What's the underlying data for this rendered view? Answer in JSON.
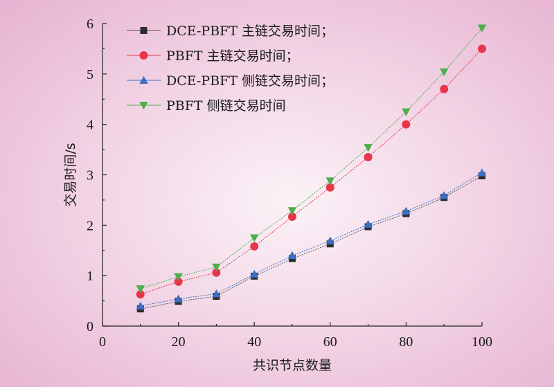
{
  "chart_data": {
    "type": "line",
    "title": "",
    "xlabel": "共识节点数量",
    "ylabel": "交易时间/s",
    "xlim": [
      0,
      100
    ],
    "ylim": [
      0,
      6
    ],
    "xticks": [
      0,
      20,
      40,
      60,
      80,
      100
    ],
    "yticks": [
      0,
      1,
      2,
      3,
      4,
      5,
      6
    ],
    "grid": false,
    "legend_position": "top-left",
    "x": [
      10,
      20,
      30,
      40,
      50,
      60,
      70,
      80,
      90,
      100
    ],
    "series": [
      {
        "name": "DCE-PBFT 主链交易时间；",
        "marker": "square",
        "color": "#2b2b2b",
        "line_color": "#555555",
        "values": [
          0.34,
          0.49,
          0.59,
          0.99,
          1.34,
          1.63,
          1.97,
          2.23,
          2.55,
          2.98
        ]
      },
      {
        "name": "PBFT 主链交易时间；",
        "marker": "circle",
        "color": "#e8354a",
        "line_color": "#e8354a",
        "values": [
          0.63,
          0.88,
          1.06,
          1.58,
          2.17,
          2.75,
          3.35,
          4.0,
          4.7,
          5.5
        ]
      },
      {
        "name": "DCE-PBFT 侧链交易时间；",
        "marker": "triangle-up",
        "color": "#3a6fc4",
        "line_color": "#3a6fc4",
        "values": [
          0.4,
          0.54,
          0.64,
          1.03,
          1.4,
          1.69,
          2.02,
          2.28,
          2.59,
          3.04
        ]
      },
      {
        "name": "PBFT 侧链交易时间",
        "marker": "triangle-down",
        "color": "#4cae4c",
        "line_color": "#4cae4c",
        "values": [
          0.74,
          0.98,
          1.17,
          1.75,
          2.29,
          2.88,
          3.54,
          4.25,
          5.04,
          5.91
        ]
      }
    ]
  }
}
